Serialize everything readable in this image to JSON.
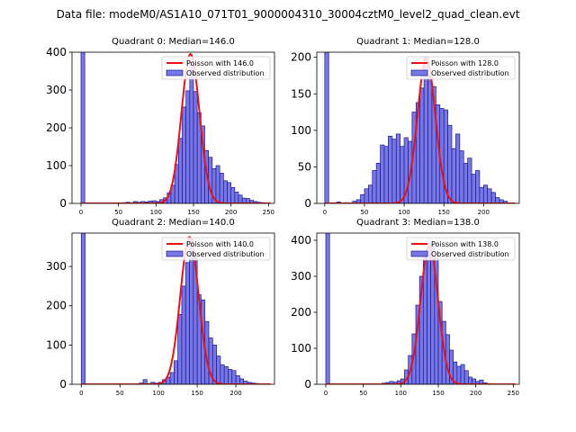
{
  "figure": {
    "suptitle": "Data file: modeM0/AS1A10_071T01_9000004310_30004cztM0_level2_quad_clean.evt"
  },
  "colors": {
    "bar_fill": "#7777e8",
    "bar_edge": "#1a1a8c",
    "poisson_line": "#ee1111",
    "axis": "#000000"
  },
  "chart_data": [
    {
      "type": "bar",
      "title": "Quadrant 0: Median=146.0",
      "median": 146.0,
      "xlim": [
        -12,
        258
      ],
      "ylim": [
        0,
        400
      ],
      "xticks": [
        0,
        50,
        100,
        150,
        200,
        250
      ],
      "yticks": [
        0,
        100,
        200,
        300,
        400
      ],
      "bin_width": 5,
      "legend": [
        "Poisson with 146.0",
        "Observed distribution"
      ],
      "bins": [
        {
          "x": 0,
          "count": 400
        },
        {
          "x": 55,
          "count": 2
        },
        {
          "x": 60,
          "count": 3
        },
        {
          "x": 65,
          "count": 2
        },
        {
          "x": 70,
          "count": 5
        },
        {
          "x": 75,
          "count": 3
        },
        {
          "x": 80,
          "count": 5
        },
        {
          "x": 85,
          "count": 4
        },
        {
          "x": 90,
          "count": 6
        },
        {
          "x": 95,
          "count": 7
        },
        {
          "x": 100,
          "count": 5
        },
        {
          "x": 105,
          "count": 10
        },
        {
          "x": 110,
          "count": 15
        },
        {
          "x": 115,
          "count": 28
        },
        {
          "x": 120,
          "count": 48
        },
        {
          "x": 125,
          "count": 103
        },
        {
          "x": 130,
          "count": 172
        },
        {
          "x": 135,
          "count": 255
        },
        {
          "x": 140,
          "count": 298
        },
        {
          "x": 145,
          "count": 375
        },
        {
          "x": 150,
          "count": 296
        },
        {
          "x": 155,
          "count": 240
        },
        {
          "x": 160,
          "count": 205
        },
        {
          "x": 165,
          "count": 140
        },
        {
          "x": 170,
          "count": 122
        },
        {
          "x": 175,
          "count": 92
        },
        {
          "x": 180,
          "count": 100
        },
        {
          "x": 185,
          "count": 80
        },
        {
          "x": 190,
          "count": 60
        },
        {
          "x": 195,
          "count": 55
        },
        {
          "x": 200,
          "count": 42
        },
        {
          "x": 205,
          "count": 30
        },
        {
          "x": 210,
          "count": 22
        },
        {
          "x": 215,
          "count": 14
        },
        {
          "x": 220,
          "count": 13
        },
        {
          "x": 225,
          "count": 8
        },
        {
          "x": 230,
          "count": 5
        },
        {
          "x": 235,
          "count": 3
        },
        {
          "x": 240,
          "count": 2
        }
      ],
      "poisson": {
        "mean": 146.0,
        "peak": 395
      }
    },
    {
      "type": "bar",
      "title": "Quadrant 1: Median=128.0",
      "median": 128.0,
      "xlim": [
        -10,
        245
      ],
      "ylim": [
        0,
        207
      ],
      "xticks": [
        0,
        50,
        100,
        150,
        200
      ],
      "yticks": [
        0,
        50,
        100,
        150,
        200
      ],
      "bin_width": 5,
      "legend": [
        "Poisson with 128.0",
        "Observed distribution"
      ],
      "bins": [
        {
          "x": 0,
          "count": 207
        },
        {
          "x": 15,
          "count": 2
        },
        {
          "x": 25,
          "count": 1
        },
        {
          "x": 35,
          "count": 3
        },
        {
          "x": 40,
          "count": 5
        },
        {
          "x": 45,
          "count": 12
        },
        {
          "x": 50,
          "count": 20
        },
        {
          "x": 55,
          "count": 25
        },
        {
          "x": 60,
          "count": 45
        },
        {
          "x": 65,
          "count": 55
        },
        {
          "x": 70,
          "count": 80
        },
        {
          "x": 75,
          "count": 78
        },
        {
          "x": 80,
          "count": 92
        },
        {
          "x": 85,
          "count": 88
        },
        {
          "x": 90,
          "count": 95
        },
        {
          "x": 95,
          "count": 78
        },
        {
          "x": 100,
          "count": 90
        },
        {
          "x": 105,
          "count": 85
        },
        {
          "x": 110,
          "count": 125
        },
        {
          "x": 115,
          "count": 138
        },
        {
          "x": 120,
          "count": 158
        },
        {
          "x": 125,
          "count": 200
        },
        {
          "x": 130,
          "count": 175
        },
        {
          "x": 135,
          "count": 160
        },
        {
          "x": 140,
          "count": 135
        },
        {
          "x": 145,
          "count": 130
        },
        {
          "x": 150,
          "count": 128
        },
        {
          "x": 155,
          "count": 107
        },
        {
          "x": 160,
          "count": 75
        },
        {
          "x": 165,
          "count": 95
        },
        {
          "x": 170,
          "count": 72
        },
        {
          "x": 175,
          "count": 55
        },
        {
          "x": 180,
          "count": 62
        },
        {
          "x": 185,
          "count": 40
        },
        {
          "x": 190,
          "count": 45
        },
        {
          "x": 195,
          "count": 22
        },
        {
          "x": 200,
          "count": 25
        },
        {
          "x": 205,
          "count": 20
        },
        {
          "x": 210,
          "count": 15
        },
        {
          "x": 215,
          "count": 8
        },
        {
          "x": 220,
          "count": 5
        },
        {
          "x": 225,
          "count": 3
        }
      ],
      "poisson": {
        "mean": 128.0,
        "peak": 198
      }
    },
    {
      "type": "bar",
      "title": "Quadrant 2: Median=140.0",
      "median": 140.0,
      "xlim": [
        -12,
        250
      ],
      "ylim": [
        0,
        385
      ],
      "xticks": [
        0,
        50,
        100,
        150,
        200
      ],
      "yticks": [
        0,
        100,
        200,
        300
      ],
      "bin_width": 5,
      "legend": [
        "Poisson with 140.0",
        "Observed distribution"
      ],
      "bins": [
        {
          "x": 0,
          "count": 385
        },
        {
          "x": 75,
          "count": 3
        },
        {
          "x": 80,
          "count": 12
        },
        {
          "x": 85,
          "count": 2
        },
        {
          "x": 90,
          "count": 5
        },
        {
          "x": 95,
          "count": 3
        },
        {
          "x": 100,
          "count": 5
        },
        {
          "x": 105,
          "count": 12
        },
        {
          "x": 110,
          "count": 18
        },
        {
          "x": 115,
          "count": 30
        },
        {
          "x": 120,
          "count": 60
        },
        {
          "x": 125,
          "count": 178
        },
        {
          "x": 130,
          "count": 250
        },
        {
          "x": 135,
          "count": 310
        },
        {
          "x": 140,
          "count": 370
        },
        {
          "x": 145,
          "count": 322
        },
        {
          "x": 150,
          "count": 228
        },
        {
          "x": 155,
          "count": 215
        },
        {
          "x": 160,
          "count": 160
        },
        {
          "x": 165,
          "count": 118
        },
        {
          "x": 170,
          "count": 100
        },
        {
          "x": 175,
          "count": 72
        },
        {
          "x": 180,
          "count": 50
        },
        {
          "x": 185,
          "count": 45
        },
        {
          "x": 190,
          "count": 38
        },
        {
          "x": 195,
          "count": 35
        },
        {
          "x": 200,
          "count": 22
        },
        {
          "x": 205,
          "count": 14
        },
        {
          "x": 210,
          "count": 8
        },
        {
          "x": 215,
          "count": 5
        },
        {
          "x": 220,
          "count": 3
        },
        {
          "x": 225,
          "count": 2
        }
      ],
      "poisson": {
        "mean": 140.0,
        "peak": 375
      }
    },
    {
      "type": "bar",
      "title": "Quadrant 3: Median=138.0",
      "median": 138.0,
      "xlim": [
        -12,
        258
      ],
      "ylim": [
        0,
        420
      ],
      "xticks": [
        0,
        50,
        100,
        150,
        200,
        250
      ],
      "yticks": [
        0,
        100,
        200,
        300,
        400
      ],
      "bin_width": 5,
      "legend": [
        "Poisson with 138.0",
        "Observed distribution"
      ],
      "bins": [
        {
          "x": 0,
          "count": 420
        },
        {
          "x": 75,
          "count": 3
        },
        {
          "x": 80,
          "count": 5
        },
        {
          "x": 85,
          "count": 8
        },
        {
          "x": 90,
          "count": 6
        },
        {
          "x": 95,
          "count": 10
        },
        {
          "x": 100,
          "count": 15
        },
        {
          "x": 105,
          "count": 40
        },
        {
          "x": 110,
          "count": 80
        },
        {
          "x": 115,
          "count": 140
        },
        {
          "x": 120,
          "count": 220
        },
        {
          "x": 125,
          "count": 300
        },
        {
          "x": 130,
          "count": 370
        },
        {
          "x": 135,
          "count": 380
        },
        {
          "x": 140,
          "count": 388
        },
        {
          "x": 145,
          "count": 350
        },
        {
          "x": 150,
          "count": 230
        },
        {
          "x": 155,
          "count": 175
        },
        {
          "x": 160,
          "count": 138
        },
        {
          "x": 165,
          "count": 95
        },
        {
          "x": 170,
          "count": 62
        },
        {
          "x": 175,
          "count": 50
        },
        {
          "x": 180,
          "count": 55
        },
        {
          "x": 185,
          "count": 38
        },
        {
          "x": 190,
          "count": 20
        },
        {
          "x": 195,
          "count": 15
        },
        {
          "x": 200,
          "count": 8
        },
        {
          "x": 205,
          "count": 12
        },
        {
          "x": 210,
          "count": 4
        },
        {
          "x": 215,
          "count": 2
        }
      ],
      "poisson": {
        "mean": 138.0,
        "peak": 385
      }
    }
  ]
}
